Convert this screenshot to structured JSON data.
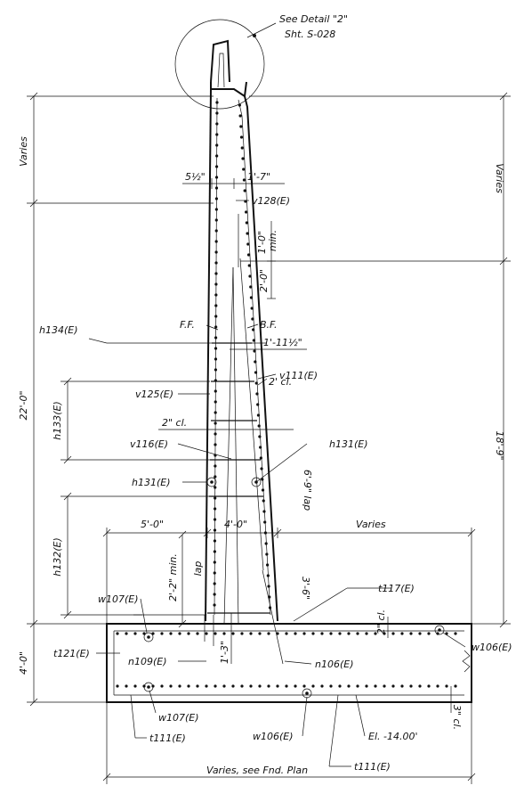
{
  "detail_ref": {
    "line1": "See Detail \"2\"",
    "line2": "Sht. S-028"
  },
  "labels": {
    "varies_left": "Varies",
    "varies_right": "Varies",
    "dim_5half": "5½\"",
    "dim_1_7": "1'-7\"",
    "v128": "v128(E)",
    "dim_1_0_min": "1'-0\"",
    "min": "min.",
    "dim_2_0": "2'-0\"",
    "ff": "F.F.",
    "bf": "B.F.",
    "h134": "h134(E)",
    "dim_1_11half": "1'-11½\"",
    "v111": "v111(E)",
    "v125": "v125(E)",
    "cl_2ft": "2' cl.",
    "cl_2in": "2\" cl.",
    "h133": "h133(E)",
    "dim_22_0": "22'-0\"",
    "dim_18_9": "18'-9\"",
    "v116": "v116(E)",
    "h131_right": "h131(E)",
    "h131_left": "h131(E)",
    "lap_6_9": "6'-9\" lap",
    "dim_5_0": "5'-0\"",
    "dim_4_0": "4'-0\"",
    "varies_footing": "Varies",
    "h132": "h132(E)",
    "dim_2_2_min": "2'-2\" min.",
    "lap": "lap",
    "dim_3_6": "3'-6\"",
    "t117": "t117(E)",
    "w107_top": "w107(E)",
    "cl_2in_b": "2\" cl.",
    "dim_4_0_v": "4'-0\"",
    "t121": "t121(E)",
    "w106_right": "w106(E)",
    "n109": "n109(E)",
    "dim_1_3": "1'-3\"",
    "n106": "n106(E)",
    "w107_bot": "w107(E)",
    "cl_3in": "3\" cl.",
    "t111_left": "t111(E)",
    "w106_bot": "w106(E)",
    "elev": "El. -14.00'",
    "t111_right": "t111(E)",
    "fnd_plan": "Varies, see Fnd. Plan"
  }
}
